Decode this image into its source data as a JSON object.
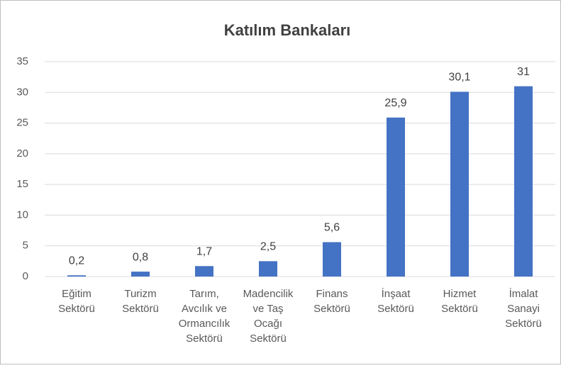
{
  "chart_data": {
    "type": "bar",
    "title": "Katılım Bankaları",
    "categories": [
      "Eğitim\nSektörü",
      "Turizm\nSektörü",
      "Tarım,\nAvcılık ve\nOrmancılık\nSektörü",
      "Madencilik\nve Taş\nOcağı\nSektörü",
      "Finans\nSektörü",
      "İnşaat\nSektörü",
      "Hizmet\nSektörü",
      "İmalat\nSanayi\nSektörü"
    ],
    "values": [
      0.2,
      0.8,
      1.7,
      2.5,
      5.6,
      25.9,
      30.1,
      31
    ],
    "value_labels": [
      "0,2",
      "0,8",
      "1,7",
      "2,5",
      "5,6",
      "25,9",
      "30,1",
      "31"
    ],
    "color": "#4472c4",
    "ylim": [
      0,
      35
    ],
    "yticks": [
      0,
      5,
      10,
      15,
      20,
      25,
      30,
      35
    ],
    "grid": true
  }
}
